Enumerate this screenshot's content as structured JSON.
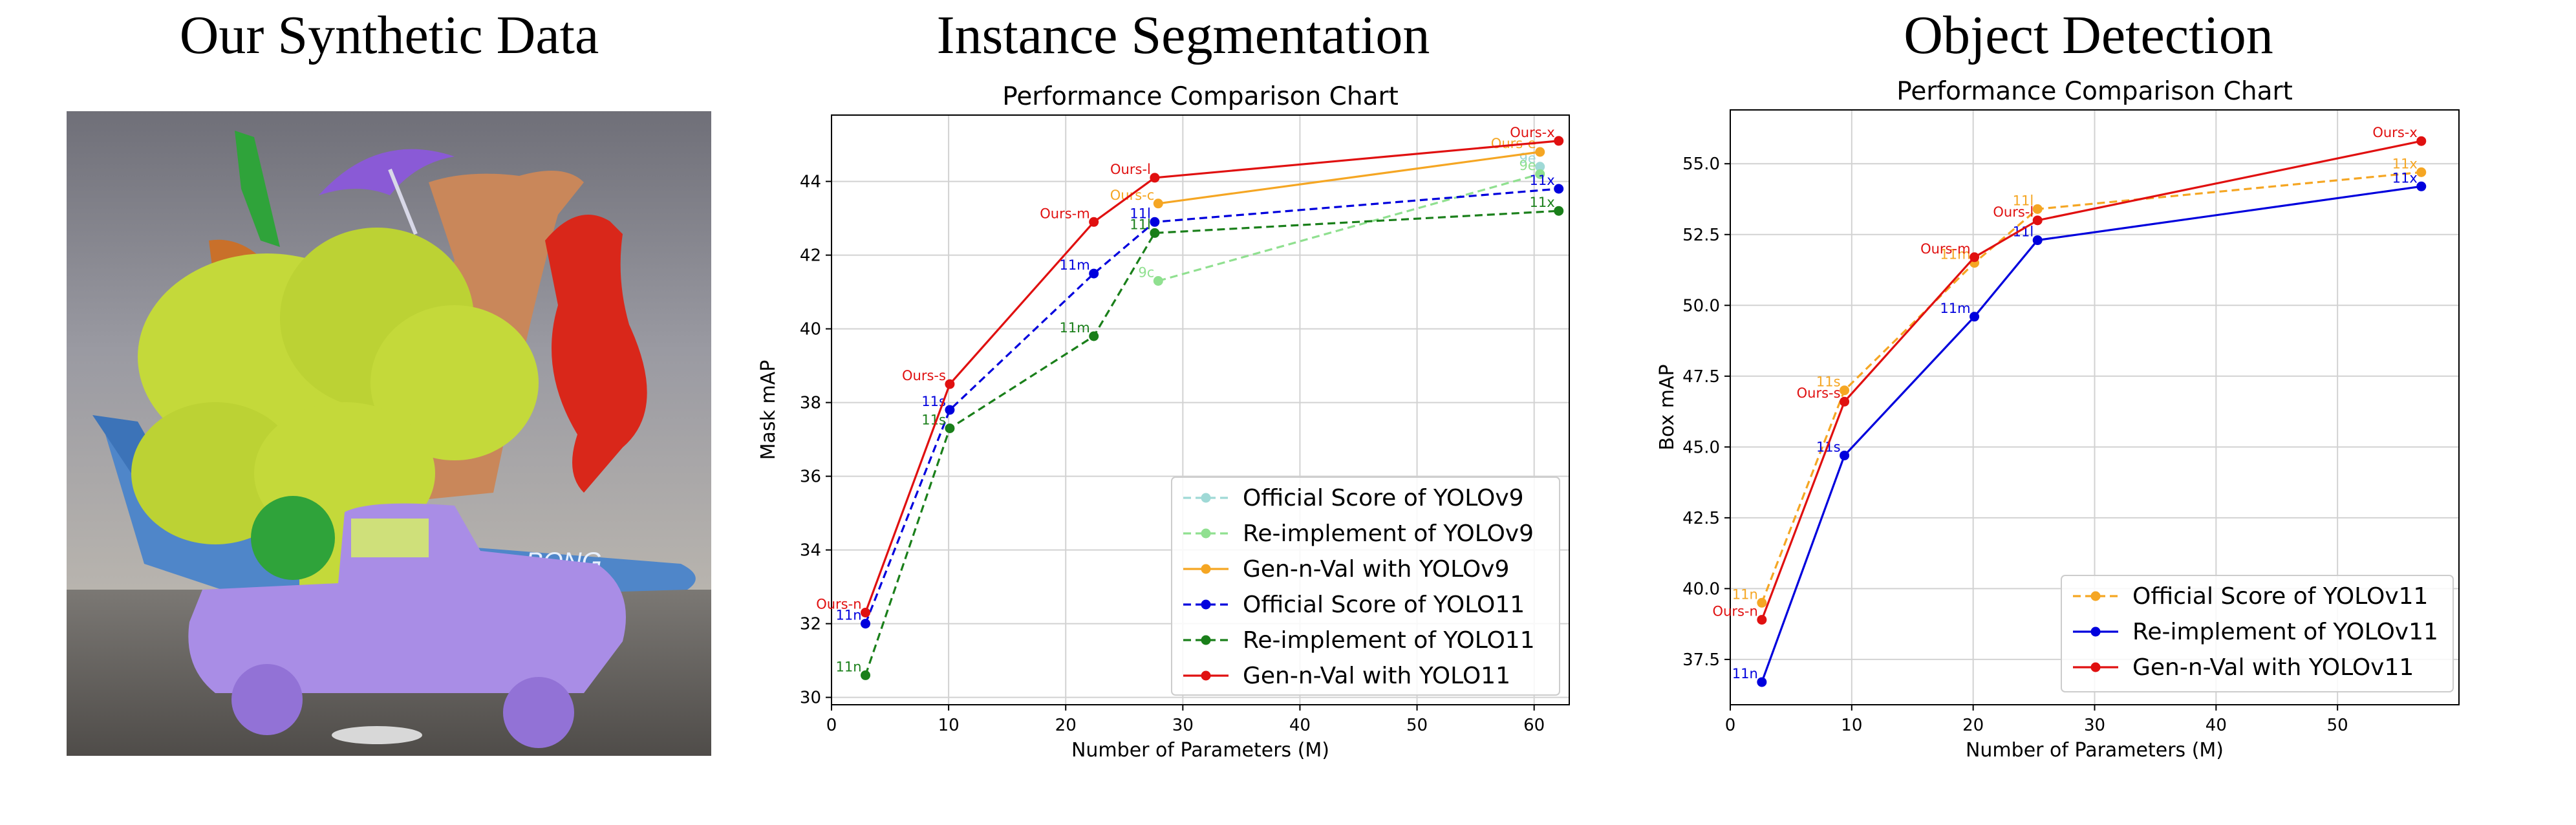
{
  "panels": [
    {
      "title": "Our Synthetic Data"
    },
    {
      "title": "Instance Segmentation"
    },
    {
      "title": "Object Detection"
    }
  ],
  "image": {
    "description_colors": {
      "sky": "#7f8590",
      "ground": "#5f5b57",
      "broccoli": "#c4d93a",
      "truck": "#a98de6",
      "cow": "#c9875a",
      "rooster": "#d9271a",
      "umbrella": "#8a5ad6",
      "tie": "#2fa33a",
      "airplane": "#5b8fd1"
    }
  },
  "chart_data": [
    {
      "type": "line",
      "title": "Performance Comparison Chart",
      "xlabel": "Number of Parameters (M)",
      "ylabel": "Mask mAP",
      "xlim": [
        0,
        63
      ],
      "ylim": [
        29.8,
        45.8
      ],
      "xticks": [
        0,
        10,
        20,
        30,
        40,
        50,
        60
      ],
      "yticks": [
        30,
        32,
        34,
        36,
        38,
        40,
        42,
        44
      ],
      "grid": true,
      "legend_position": "lower-right",
      "series": [
        {
          "name": "Official Score of YOLOv9",
          "color": "#9fd9d6",
          "dash": true,
          "points": [
            [
              60.5,
              44.4
            ]
          ],
          "point_labels": [
            "9e"
          ]
        },
        {
          "name": "Re-implement of YOLOv9",
          "color": "#90e090",
          "dash": true,
          "points": [
            [
              27.9,
              41.3
            ],
            [
              60.5,
              44.2
            ]
          ],
          "point_labels": [
            "9c",
            "9e"
          ]
        },
        {
          "name": "Gen-n-Val with YOLOv9",
          "color": "#f5a623",
          "dash": false,
          "points": [
            [
              27.9,
              43.4
            ],
            [
              60.5,
              44.8
            ]
          ],
          "point_labels": [
            "Ours-c",
            "Ours-e"
          ]
        },
        {
          "name": "Official Score of YOLO11",
          "color": "#0000dd",
          "dash": true,
          "points": [
            [
              2.9,
              32.0
            ],
            [
              10.1,
              37.8
            ],
            [
              22.4,
              41.5
            ],
            [
              27.6,
              42.9
            ],
            [
              62.1,
              43.8
            ]
          ],
          "point_labels": [
            "11n",
            "11s",
            "11m",
            "11l",
            "11x"
          ]
        },
        {
          "name": "Re-implement of YOLO11",
          "color": "#1a7f1a",
          "dash": true,
          "points": [
            [
              2.9,
              30.6
            ],
            [
              10.1,
              37.3
            ],
            [
              22.4,
              39.8
            ],
            [
              27.6,
              42.6
            ],
            [
              62.1,
              43.2
            ]
          ],
          "point_labels": [
            "11n",
            "11s",
            "11m",
            "11l",
            "11x"
          ]
        },
        {
          "name": "Gen-n-Val with YOLO11",
          "color": "#e01010",
          "dash": false,
          "points": [
            [
              2.9,
              32.3
            ],
            [
              10.1,
              38.5
            ],
            [
              22.4,
              42.9
            ],
            [
              27.6,
              44.1
            ],
            [
              62.1,
              45.1
            ]
          ],
          "point_labels": [
            "Ours-n",
            "Ours-s",
            "Ours-m",
            "Ours-l",
            "Ours-x"
          ]
        }
      ]
    },
    {
      "type": "line",
      "title": "Performance Comparison Chart",
      "xlabel": "Number of Parameters (M)",
      "ylabel": "Box mAP",
      "xlim": [
        0,
        60
      ],
      "ylim": [
        35.9,
        56.9
      ],
      "xticks": [
        0,
        10,
        20,
        30,
        40,
        50
      ],
      "yticks": [
        37.5,
        40.0,
        42.5,
        45.0,
        47.5,
        50.0,
        52.5,
        55.0
      ],
      "ytick_labels": [
        "37.5",
        "40.0",
        "42.5",
        "45.0",
        "47.5",
        "50.0",
        "52.5",
        "55.0"
      ],
      "grid": true,
      "legend_position": "lower-right",
      "series": [
        {
          "name": "Official Score of YOLOv11",
          "color": "#f5a623",
          "dash": true,
          "points": [
            [
              2.6,
              39.5
            ],
            [
              9.4,
              47.0
            ],
            [
              20.1,
              51.5
            ],
            [
              25.3,
              53.4
            ],
            [
              56.9,
              54.7
            ]
          ],
          "point_labels": [
            "11n",
            "11s",
            "11m",
            "11l",
            "11x"
          ]
        },
        {
          "name": "Re-implement of YOLOv11",
          "color": "#0000dd",
          "dash": false,
          "points": [
            [
              2.6,
              36.7
            ],
            [
              9.4,
              44.7
            ],
            [
              20.1,
              49.6
            ],
            [
              25.3,
              52.3
            ],
            [
              56.9,
              54.2
            ]
          ],
          "point_labels": [
            "11n",
            "11s",
            "11m",
            "11l",
            "11x"
          ]
        },
        {
          "name": "Gen-n-Val with YOLOv11",
          "color": "#e01010",
          "dash": false,
          "points": [
            [
              2.6,
              38.9
            ],
            [
              9.4,
              46.6
            ],
            [
              20.1,
              51.7
            ],
            [
              25.3,
              53.0
            ],
            [
              56.9,
              55.8
            ]
          ],
          "point_labels": [
            "Ours-n",
            "Ours-s",
            "Ours-m",
            "Ours-l",
            "Ours-x"
          ]
        }
      ]
    }
  ]
}
